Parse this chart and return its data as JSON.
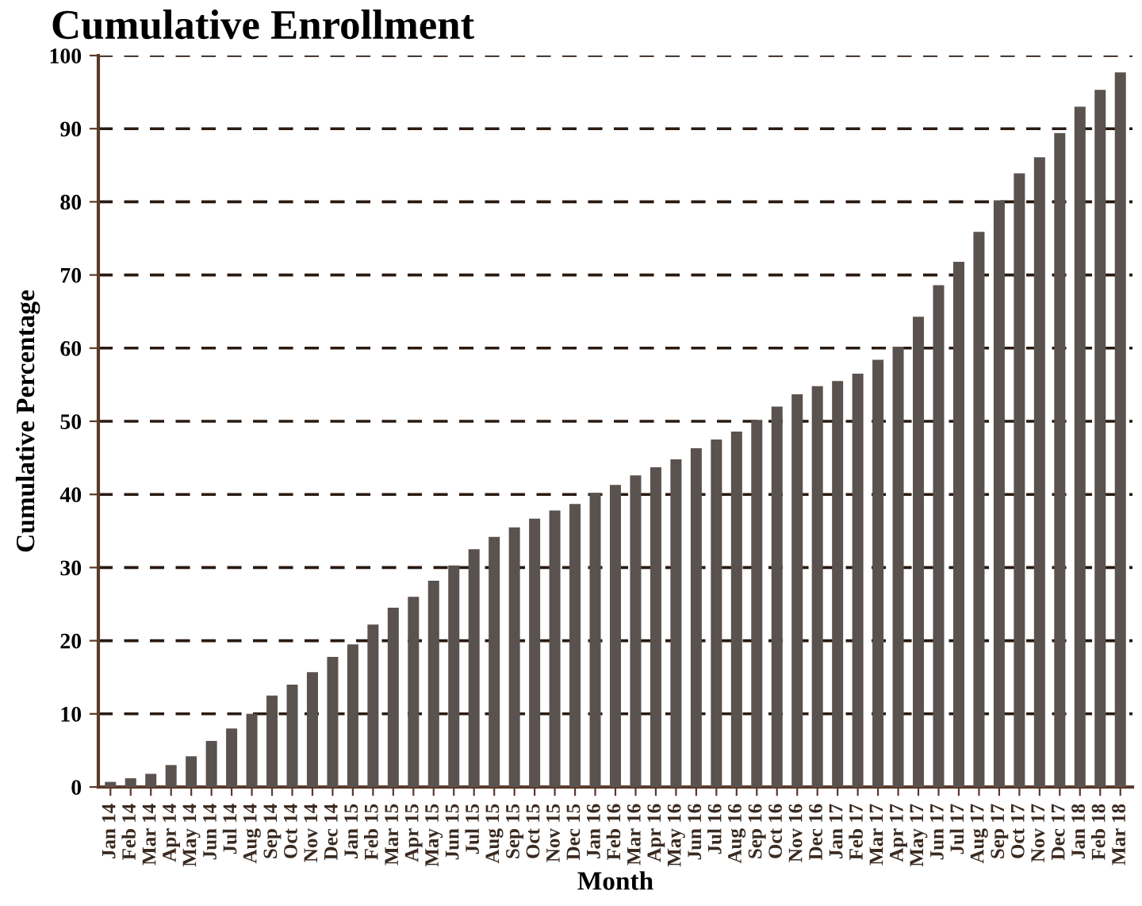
{
  "chart_data": {
    "type": "bar",
    "title": "Cumulative Enrollment",
    "xlabel": "Month",
    "ylabel": "Cumulative Percentage",
    "categories": [
      "Jan 14",
      "Feb 14",
      "Mar 14",
      "Apr 14",
      "May 14",
      "Jun 14",
      "Jul 14",
      "Aug 14",
      "Sep 14",
      "Oct 14",
      "Nov 14",
      "Dec 14",
      "Jan 15",
      "Feb 15",
      "Mar 15",
      "Apr 15",
      "May 15",
      "Jun 15",
      "Jul 15",
      "Aug 15",
      "Sep 15",
      "Oct 15",
      "Nov 15",
      "Dec 15",
      "Jan 16",
      "Feb 16",
      "Mar 16",
      "Apr 16",
      "May 16",
      "Jun 16",
      "Jul 16",
      "Aug 16",
      "Sep 16",
      "Oct 16",
      "Nov 16",
      "Dec 16",
      "Jan 17",
      "Feb 17",
      "Mar 17",
      "Apr 17",
      "May 17",
      "Jun 17",
      "Jul 17",
      "Aug 17",
      "Sep 17",
      "Oct 17",
      "Nov 17",
      "Dec 17",
      "Jan 18",
      "Feb 18",
      "Mar 18"
    ],
    "values": [
      0.7,
      1.2,
      1.8,
      3,
      4.2,
      6.3,
      8,
      10,
      12.5,
      14,
      15.7,
      17.8,
      19.5,
      22.2,
      24.5,
      26,
      28.2,
      30.3,
      32.5,
      34.2,
      35.5,
      36.7,
      37.8,
      38.7,
      40.2,
      41.3,
      42.6,
      43.7,
      44.8,
      46.3,
      47.5,
      48.6,
      50.2,
      52,
      53.7,
      54.8,
      55.5,
      56.5,
      58.4,
      60.2,
      64.3,
      68.6,
      71.8,
      75.9,
      80.2,
      83.9,
      86.1,
      89.4,
      93,
      95.3,
      97.7
    ],
    "color": "#5a524e",
    "ylim": [
      0,
      100
    ],
    "yticks": [
      0,
      10,
      20,
      30,
      40,
      50,
      60,
      70,
      80,
      90,
      100
    ],
    "grid": "y",
    "line_style": "dashed"
  }
}
